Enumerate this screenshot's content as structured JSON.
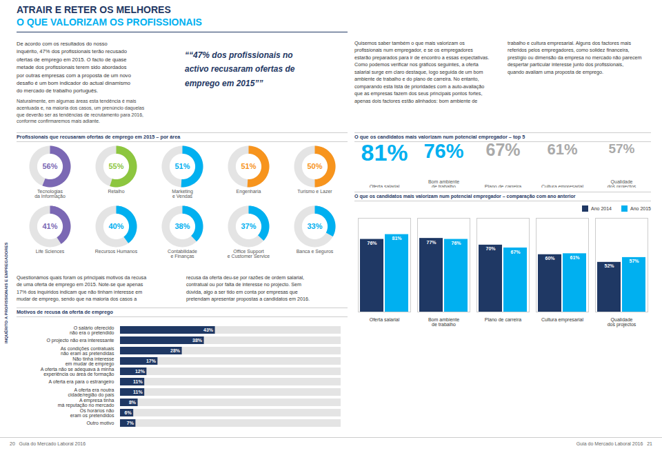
{
  "title": "ATRAIR E RETER OS MELHORES",
  "subtitle": "O QUE VALORIZAM OS PROFISSIONAIS",
  "annotations": [
    "De acordo com os resultados do nosso\ninquérito, 47% dos profissionais terão recusado\nofertas de emprego em 2015. O facto de quase\nmetade dos profissionais terem sido abordados\npor outras empresas com a proposta de um novo\ndesafio é um bom indicador do actual dinamismo\ndo mercado de trabalho português.",
    "Naturalmente, em algumas áreas esta tendência é mais\nacentuada e, na maioria dos casos, um prenúncio daquelas\nque deverão ser as tendências de recrutamento para 2016,\nconforme confirmaremos mais adiante.",
    "““47% dos profissionais no\nactivo recusaram ofertas de\nemprego em 2015””",
    "Quisemos saber também o que mais valorizam os\nprofissionais num empregador, e se os empregadores\nestarão preparados para ir de encontro a essas expectativas.\nComo podemos verificar nos gráficos seguintes, a oferta\nsalarial surge em claro destaque, logo seguida de um bom\nambiente de trabalho e do plano de carreira. No entanto,\ncomparando esta lista de prioridades com a auto-avaliação\nque as empresas fazem dos seus principais pontos fortes,\napenas dois factores estão alinhados: bom ambiente de",
    "trabalho e cultura empresarial. Alguns dos factores mais\nreferidos pelos empregadores, como solidez financeira,\nprestígio ou dimensão da empresa no mercado não parecem\ndespertar particular interesse junto dos profissionais,\nquando avaliam uma proposta de emprego.",
    "Questionámos quais foram os principais motivos da recusa\nde uma oferta de emprego em 2015. Note-se que apenas\n17% dos inquiridos indicam que não tinham interesse em\nmudar de emprego, sendo que na maioria dos casos a",
    "recusa da oferta deu-se por razões de ordem salarial,\ncontratual ou por falta de interesse no projecto. Sem\ndúvida, algo a ser tido em conta por empresas que\npretendam apresentar propostas a candidatos em 2016.",
    "INQUÉRITO A PROFISSIONAIS E EMPREGADORES",
    "20   Guia do Mercado Laboral 2016",
    "Guia do Mercado Laboral 2016   21"
  ],
  "chart_data": [
    {
      "type": "donut",
      "title": "Profissionais que recusaram ofertas de emprego em 2015 – por área",
      "categories": [
        "Tecnologias\nda Informação",
        "Retalho",
        "Marketing\ne Vendas",
        "Engenharia",
        "Turismo e Lazer",
        "Life Sciences",
        "Recursos Humanos",
        "Contabilidade\ne Finanças",
        "Office Support\ne Customer Service",
        "Banca e Seguros"
      ],
      "values": [
        56,
        55,
        51,
        51,
        50,
        41,
        40,
        38,
        37,
        33
      ],
      "value_labels": [
        "56%",
        "55%",
        "51%",
        "51%",
        "50%",
        "41%",
        "40%",
        "38%",
        "37%",
        "33%"
      ],
      "colors": [
        "#7b68b4",
        "#8dc63f",
        "#00b0f0",
        "#f7941d",
        "#f7941d",
        "#7b68b4",
        "#00b0f0",
        "#00b0f0",
        "#00b0f0",
        "#00b0f0"
      ],
      "ylim": [
        0,
        100
      ],
      "data_labels": true
    },
    {
      "type": "numbers",
      "title": "O que os candidatos mais valorizam num potencial empregador – top 5",
      "categories": [
        "Oferta salarial",
        "Bom ambiente\nde trabalho",
        "Plano de carreira",
        "Cultura empresarial",
        "Qualidade\ndos projectos"
      ],
      "values": [
        81,
        76,
        67,
        61,
        57
      ],
      "value_labels": [
        "81%",
        "76%",
        "67%",
        "61%",
        "57%"
      ],
      "colors": [
        "#00b0f0",
        "#00b0f0",
        "#aaaaaa",
        "#aaaaaa",
        "#aaaaaa"
      ],
      "data_labels": true
    },
    {
      "type": "bar",
      "title": "O que os candidatos mais valorizam num potencial empregador – comparação com ano anterior",
      "categories": [
        "Oferta salarial",
        "Bom ambiente\nde trabalho",
        "Plano de carreira",
        "Cultura empresarial",
        "Qualidade\ndos projectos"
      ],
      "series": [
        {
          "name": "Ano 2014",
          "color": "#1f3864",
          "values": [
            76,
            77,
            70,
            60,
            52
          ],
          "value_labels": [
            "76%",
            "77%",
            "70%",
            "60%",
            "52%"
          ]
        },
        {
          "name": "Ano 2015",
          "color": "#00b0f0",
          "values": [
            81,
            76,
            67,
            61,
            57
          ],
          "value_labels": [
            "81%",
            "76%",
            "67%",
            "61%",
            "57%"
          ]
        }
      ],
      "ylim": [
        0,
        98
      ],
      "tick_labels": "x",
      "data_labels": true,
      "legend": "upper right"
    },
    {
      "type": "bar",
      "orientation": "horizontal",
      "title": "Motivos de recusa da oferta de emprego",
      "categories": [
        "O salário oferecido\nnão era o pretendido",
        "O projecto não era interessante",
        "As condições contratuais\nnão eram as pretendidas",
        "Não tinha interesse\nem mudar de emprego",
        "A oferta não se adequava à minha\nexperiência ou área de formação",
        "A oferta era para o estrangeiro",
        "A oferta era noutra\ncidade/região do país",
        "A empresa tinha\nmá reputação no mercado",
        "Os horários não\neram os pretendidos",
        "Outro motivo"
      ],
      "values": [
        43,
        38,
        28,
        17,
        12,
        11,
        11,
        8,
        6,
        7
      ],
      "value_labels": [
        "43%",
        "38%",
        "28%",
        "17%",
        "12%",
        "11%",
        "11%",
        "8%",
        "6%",
        "7%"
      ],
      "color": "#1f3864",
      "xlim": [
        0,
        100
      ],
      "tick_labels": "y",
      "data_labels": true
    }
  ]
}
